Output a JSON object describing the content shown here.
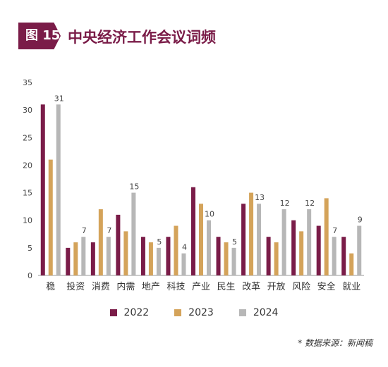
{
  "header": {
    "badge": "图 15",
    "title": "中央经济工作会议词频"
  },
  "colors": {
    "badge": "#7a1c48",
    "title": "#7a1c48",
    "series": [
      "#7a1c48",
      "#d4a35a",
      "#b7b7b7"
    ]
  },
  "source": "* 数据来源：新闻稿",
  "chart_data": {
    "type": "bar",
    "title": "",
    "xlabel": "",
    "ylabel": "",
    "ylim": [
      0,
      35
    ],
    "yticks": [
      0,
      5,
      10,
      15,
      20,
      25,
      30,
      35
    ],
    "grid": false,
    "legend_position": "bottom",
    "categories": [
      "稳",
      "投资",
      "消费",
      "内需",
      "地产",
      "科技",
      "产业",
      "民生",
      "改革",
      "开放",
      "风险",
      "安全",
      "就业"
    ],
    "series": [
      {
        "name": "2022",
        "values": [
          31,
          5,
          6,
          11,
          7,
          7,
          16,
          7,
          13,
          7,
          10,
          9,
          7
        ]
      },
      {
        "name": "2023",
        "values": [
          21,
          6,
          12,
          8,
          6,
          9,
          13,
          6,
          15,
          6,
          8,
          14,
          4
        ]
      },
      {
        "name": "2024",
        "values": [
          31,
          7,
          7,
          15,
          5,
          4,
          10,
          5,
          13,
          12,
          12,
          7,
          9
        ]
      }
    ],
    "data_labels_series": "2024"
  }
}
